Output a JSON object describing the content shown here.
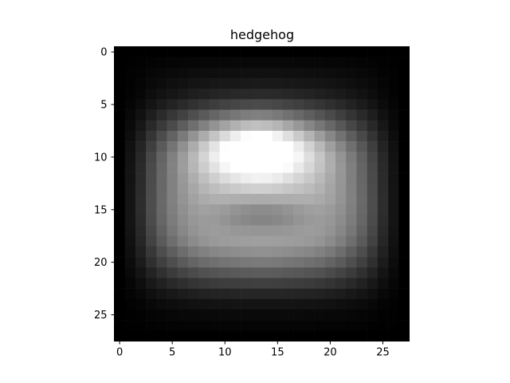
{
  "chart_data": {
    "type": "heatmap",
    "title": "hedgehog",
    "xlabel": "",
    "ylabel": "",
    "colormap": "gray",
    "value_range": [
      0,
      1
    ],
    "rows": 28,
    "cols": 28,
    "x_ticks": [
      0,
      5,
      10,
      15,
      20,
      25
    ],
    "y_ticks": [
      0,
      5,
      10,
      15,
      20,
      25
    ],
    "xlim": [
      -0.5,
      27.5
    ],
    "ylim": [
      27.5,
      -0.5
    ],
    "grid": false,
    "legend": "none",
    "row_profile": [
      0.0,
      0.03,
      0.06,
      0.09,
      0.13,
      0.2,
      0.3,
      0.4,
      0.52,
      0.62,
      0.7,
      0.74,
      0.76,
      0.78,
      0.8,
      0.8,
      0.78,
      0.74,
      0.68,
      0.58,
      0.48,
      0.36,
      0.25,
      0.15,
      0.08,
      0.04,
      0.02,
      0.0
    ],
    "col_profile": [
      0.0,
      0.1,
      0.22,
      0.38,
      0.52,
      0.64,
      0.74,
      0.82,
      0.88,
      0.92,
      0.95,
      0.97,
      0.99,
      1.0,
      1.0,
      0.99,
      0.97,
      0.95,
      0.92,
      0.88,
      0.82,
      0.74,
      0.64,
      0.52,
      0.38,
      0.22,
      0.1,
      0.0
    ],
    "highlight": {
      "center_row": 9,
      "center_col": 13,
      "radius_rows": 3,
      "radius_cols": 6,
      "boost": 0.55
    },
    "dark_band": {
      "center_row": 15.5,
      "center_col": 13.5,
      "radius_rows": 2,
      "radius_cols": 5,
      "depth": 0.28
    }
  }
}
